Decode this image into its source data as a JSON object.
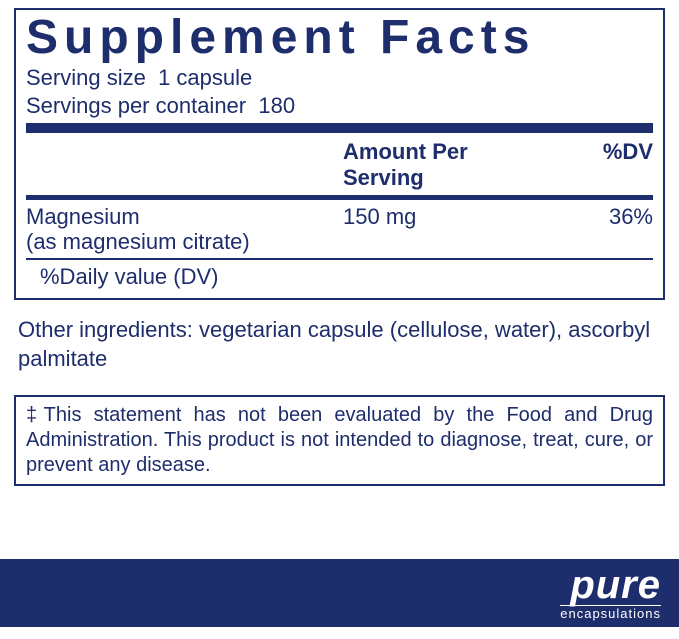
{
  "colors": {
    "primary": "#1e2d6b",
    "background": "#ffffff",
    "footer_text": "#ffffff"
  },
  "title": "Supplement Facts",
  "serving": {
    "size_label": "Serving size",
    "size_value": "1 capsule",
    "per_container_label": "Servings per container",
    "per_container_value": "180"
  },
  "columns": {
    "amount": "Amount Per Serving",
    "dv": "%DV"
  },
  "rows": [
    {
      "name": "Magnesium",
      "sub": "(as magnesium citrate)",
      "amount": "150 mg",
      "dv": "36%"
    }
  ],
  "dv_note": "%Daily value (DV)",
  "other_ingredients": "Other ingredients: vegetarian capsule (cellulose, water), ascorbyl palmitate",
  "disclaimer": "‡This statement has not been evaluated by the Food and Drug Administration. This product is not intended to diagnose, treat, cure, or prevent any disease.",
  "brand": {
    "main": "pure",
    "sub": "encapsulations"
  }
}
